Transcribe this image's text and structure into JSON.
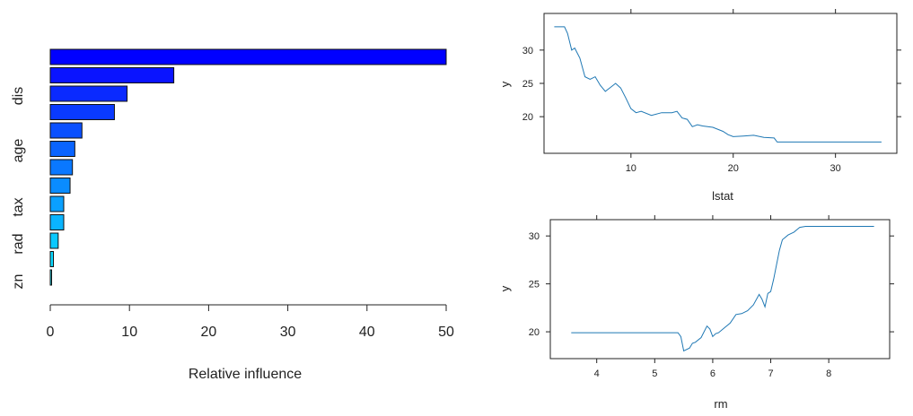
{
  "chart_data": [
    {
      "type": "bar",
      "orientation": "horizontal",
      "xlabel": "Relative influence",
      "xlim": [
        0,
        50
      ],
      "xticks": [
        0,
        10,
        20,
        30,
        40,
        50
      ],
      "categories_visible": [
        "dis",
        "age",
        "tax",
        "rad",
        "zn"
      ],
      "values": [
        50.0,
        15.6,
        9.7,
        8.1,
        4.0,
        3.1,
        2.8,
        2.5,
        1.7,
        1.7,
        1.0,
        0.4,
        0.1
      ],
      "colors": [
        "#0000ff",
        "#0a14ff",
        "#0a2aff",
        "#0a3aff",
        "#0a50ff",
        "#0a64ff",
        "#0a78ff",
        "#0a8cff",
        "#0aa0ff",
        "#0ab4ff",
        "#0ac8ff",
        "#0ad8ff",
        "#0ae8ff"
      ]
    },
    {
      "type": "line",
      "xlabel": "lstat",
      "ylabel": "y",
      "xlim": [
        1.5,
        36
      ],
      "ylim": [
        14.5,
        35.5
      ],
      "xticks": [
        10,
        20,
        30
      ],
      "yticks": [
        20,
        25,
        30
      ],
      "color": "#1f78b4",
      "x": [
        2.5,
        3.5,
        3.8,
        4.2,
        4.5,
        5.0,
        5.5,
        6.0,
        6.5,
        7.0,
        7.5,
        8.0,
        8.5,
        9.0,
        9.5,
        10.0,
        10.5,
        11.0,
        12.0,
        13.0,
        14.0,
        14.5,
        15.0,
        15.5,
        16.0,
        16.5,
        17.0,
        18.0,
        19.0,
        19.5,
        20.0,
        21.0,
        22.0,
        23.0,
        24.0,
        24.3,
        26.0,
        28.0,
        30.0,
        32.0,
        34.5
      ],
      "y": [
        33.5,
        33.5,
        32.5,
        30.0,
        30.3,
        28.8,
        26.0,
        25.6,
        26.0,
        24.7,
        23.8,
        24.4,
        25.0,
        24.3,
        22.8,
        21.2,
        20.6,
        20.8,
        20.2,
        20.6,
        20.6,
        20.8,
        19.8,
        19.6,
        18.5,
        18.8,
        18.6,
        18.4,
        17.8,
        17.3,
        17.0,
        17.1,
        17.2,
        16.9,
        16.8,
        16.2,
        16.2,
        16.2,
        16.2,
        16.2,
        16.2
      ]
    },
    {
      "type": "line",
      "xlabel": "rm",
      "ylabel": "y",
      "xlim": [
        3.2,
        9.05
      ],
      "ylim": [
        17.2,
        31.7
      ],
      "xticks": [
        4,
        5,
        6,
        7,
        8
      ],
      "yticks": [
        20,
        25,
        30
      ],
      "color": "#1f78b4",
      "x": [
        3.56,
        4.0,
        5.0,
        5.4,
        5.45,
        5.5,
        5.6,
        5.65,
        5.7,
        5.8,
        5.9,
        5.95,
        6.0,
        6.05,
        6.1,
        6.2,
        6.3,
        6.4,
        6.5,
        6.6,
        6.7,
        6.8,
        6.85,
        6.9,
        6.95,
        7.0,
        7.05,
        7.1,
        7.15,
        7.2,
        7.3,
        7.4,
        7.5,
        7.6,
        8.0,
        8.5,
        8.78
      ],
      "y": [
        19.9,
        19.9,
        19.9,
        19.9,
        19.5,
        18.0,
        18.3,
        18.8,
        18.9,
        19.4,
        20.6,
        20.3,
        19.5,
        19.8,
        19.9,
        20.4,
        20.9,
        21.8,
        21.9,
        22.2,
        22.8,
        23.9,
        23.4,
        22.6,
        24.0,
        24.2,
        25.5,
        27.0,
        28.5,
        29.6,
        30.1,
        30.4,
        30.9,
        31.0,
        31.0,
        31.0,
        31.0
      ]
    }
  ]
}
